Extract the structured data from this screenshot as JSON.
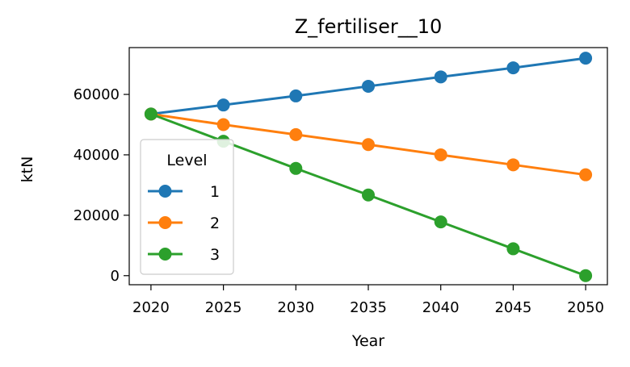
{
  "chart_data": {
    "type": "line",
    "title": "Z_fertiliser__10",
    "xlabel": "Year",
    "ylabel": "ktN",
    "x": [
      2020,
      2025,
      2030,
      2035,
      2040,
      2045,
      2050
    ],
    "xlim": [
      2018.5,
      2051.5
    ],
    "ylim": [
      -3000,
      75500
    ],
    "xticks": [
      "2020",
      "2025",
      "2030",
      "2035",
      "2040",
      "2045",
      "2050"
    ],
    "yticks": [
      "0",
      "20000",
      "40000",
      "60000"
    ],
    "grid": false,
    "legend": {
      "title": "Level",
      "placement": "lower-left"
    },
    "series": [
      {
        "name": "1",
        "color": "#1f77b4",
        "values": [
          53500,
          56500,
          59500,
          62700,
          65800,
          68800,
          72000
        ]
      },
      {
        "name": "2",
        "color": "#ff7f0e",
        "values": [
          53500,
          50000,
          46700,
          43400,
          40000,
          36700,
          33400
        ]
      },
      {
        "name": "3",
        "color": "#2ca02c",
        "values": [
          53500,
          44500,
          35500,
          26700,
          17800,
          8900,
          0
        ]
      }
    ]
  }
}
